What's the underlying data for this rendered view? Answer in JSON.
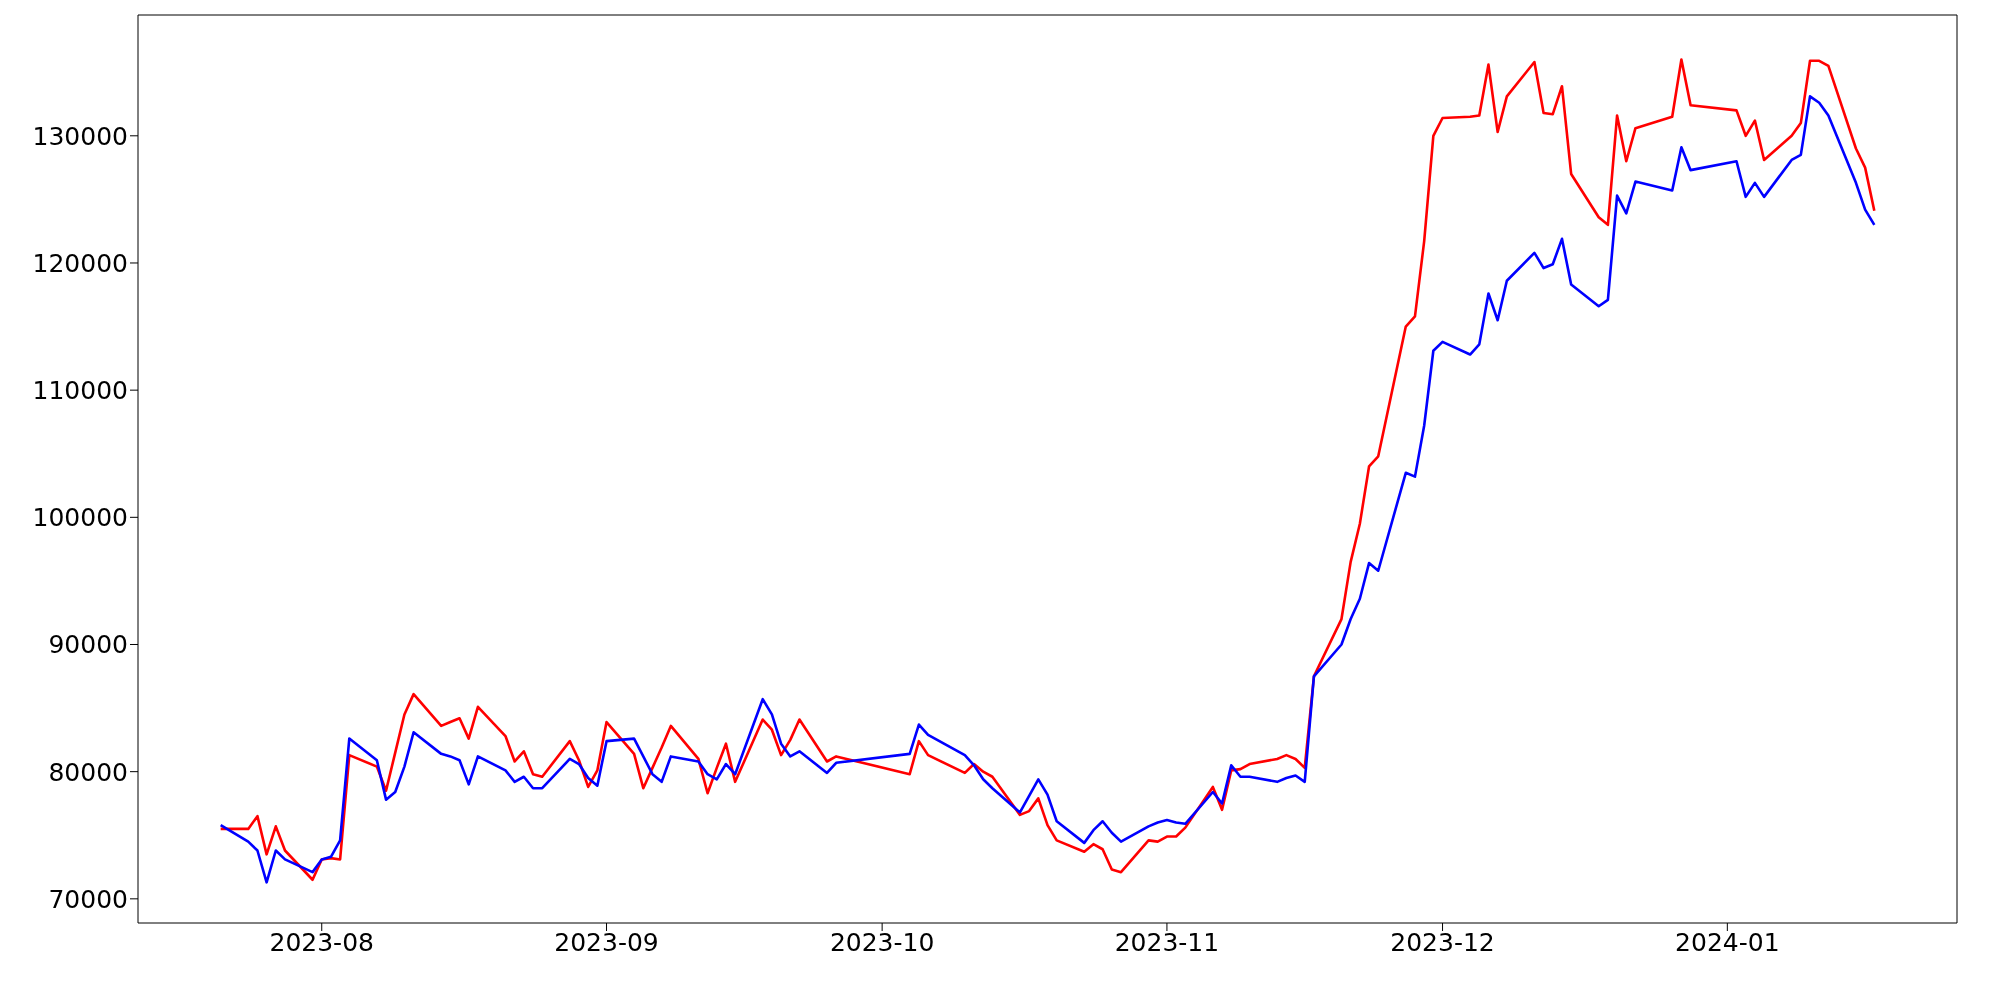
{
  "chart_data": {
    "type": "line",
    "x": [
      "2023-07-21",
      "2023-07-24",
      "2023-07-25",
      "2023-07-26",
      "2023-07-27",
      "2023-07-28",
      "2023-07-31",
      "2023-08-01",
      "2023-08-02",
      "2023-08-03",
      "2023-08-04",
      "2023-08-07",
      "2023-08-08",
      "2023-08-09",
      "2023-08-10",
      "2023-08-11",
      "2023-08-14",
      "2023-08-15",
      "2023-08-16",
      "2023-08-17",
      "2023-08-18",
      "2023-08-21",
      "2023-08-22",
      "2023-08-23",
      "2023-08-24",
      "2023-08-25",
      "2023-08-28",
      "2023-08-29",
      "2023-08-30",
      "2023-08-31",
      "2023-09-01",
      "2023-09-04",
      "2023-09-05",
      "2023-09-06",
      "2023-09-07",
      "2023-09-08",
      "2023-09-11",
      "2023-09-12",
      "2023-09-13",
      "2023-09-14",
      "2023-09-15",
      "2023-09-18",
      "2023-09-19",
      "2023-09-20",
      "2023-09-21",
      "2023-09-22",
      "2023-09-25",
      "2023-09-26",
      "2023-10-04",
      "2023-10-05",
      "2023-10-06",
      "2023-10-10",
      "2023-10-11",
      "2023-10-12",
      "2023-10-13",
      "2023-10-16",
      "2023-10-17",
      "2023-10-18",
      "2023-10-19",
      "2023-10-20",
      "2023-10-23",
      "2023-10-24",
      "2023-10-25",
      "2023-10-26",
      "2023-10-27",
      "2023-10-30",
      "2023-10-31",
      "2023-11-01",
      "2023-11-02",
      "2023-11-03",
      "2023-11-06",
      "2023-11-07",
      "2023-11-08",
      "2023-11-09",
      "2023-11-10",
      "2023-11-13",
      "2023-11-14",
      "2023-11-15",
      "2023-11-16",
      "2023-11-17",
      "2023-11-20",
      "2023-11-21",
      "2023-11-22",
      "2023-11-23",
      "2023-11-24",
      "2023-11-27",
      "2023-11-28",
      "2023-11-29",
      "2023-11-30",
      "2023-12-01",
      "2023-12-04",
      "2023-12-05",
      "2023-12-06",
      "2023-12-07",
      "2023-12-08",
      "2023-12-11",
      "2023-12-12",
      "2023-12-13",
      "2023-12-14",
      "2023-12-15",
      "2023-12-18",
      "2023-12-19",
      "2023-12-20",
      "2023-12-21",
      "2023-12-22",
      "2023-12-26",
      "2023-12-27",
      "2023-12-28",
      "2024-01-02",
      "2024-01-03",
      "2024-01-04",
      "2024-01-05",
      "2024-01-08",
      "2024-01-09",
      "2024-01-10",
      "2024-01-11",
      "2024-01-12",
      "2024-01-15",
      "2024-01-16",
      "2024-01-17"
    ],
    "series": [
      {
        "color": "#ff0000",
        "values": [
          75500,
          75500,
          76500,
          73500,
          75700,
          73800,
          71500,
          73100,
          73200,
          73100,
          81300,
          80400,
          78500,
          81500,
          84500,
          86100,
          83600,
          83900,
          84200,
          82600,
          85100,
          82800,
          80800,
          81600,
          79800,
          79600,
          82400,
          80900,
          78800,
          80100,
          83900,
          81400,
          78700,
          80300,
          81900,
          83600,
          81000,
          78300,
          80300,
          82200,
          79200,
          84100,
          83300,
          81300,
          82500,
          84100,
          80800,
          81200,
          79800,
          82400,
          81300,
          79900,
          80600,
          80000,
          79600,
          76600,
          76900,
          77900,
          75800,
          74600,
          73700,
          74300,
          73900,
          72300,
          72100,
          74600,
          74500,
          74900,
          74900,
          75600,
          78800,
          77000,
          80100,
          80200,
          80600,
          81000,
          81300,
          81000,
          80300,
          87500,
          92000,
          96500,
          99500,
          104000,
          104800,
          115000,
          115800,
          121700,
          130000,
          131400,
          131500,
          131600,
          135600,
          130300,
          133100,
          135800,
          131800,
          131700,
          133900,
          127000,
          123600,
          123000,
          131600,
          128000,
          130600,
          131500,
          136000,
          132400,
          132000,
          130000,
          131200,
          128100,
          130000,
          131000,
          135900,
          135900,
          135500,
          129000,
          127500,
          124100
        ]
      },
      {
        "color": "#0000ff",
        "values": [
          75800,
          74500,
          73800,
          71300,
          73800,
          73100,
          72100,
          73100,
          73300,
          74600,
          82600,
          80900,
          77800,
          78400,
          80400,
          83100,
          81400,
          81200,
          80900,
          79000,
          81200,
          80100,
          79200,
          79600,
          78700,
          78700,
          81000,
          80600,
          79500,
          78900,
          82400,
          82600,
          81200,
          79800,
          79200,
          81200,
          80800,
          79800,
          79400,
          80600,
          79800,
          85700,
          84500,
          82200,
          81200,
          81600,
          79900,
          80700,
          81400,
          83700,
          82900,
          81300,
          80500,
          79400,
          78700,
          76800,
          78100,
          79400,
          78200,
          76100,
          74400,
          75400,
          76100,
          75200,
          74500,
          75700,
          76000,
          76200,
          76000,
          75900,
          78400,
          77500,
          80500,
          79600,
          79600,
          79200,
          79500,
          79700,
          79200,
          87500,
          90000,
          92000,
          93600,
          96400,
          95800,
          103500,
          103200,
          107200,
          113100,
          113800,
          112800,
          113600,
          117600,
          115500,
          118600,
          120800,
          119600,
          119900,
          121900,
          118300,
          116600,
          117100,
          125300,
          123900,
          126400,
          125700,
          129100,
          127300,
          128000,
          125200,
          126300,
          125200,
          128100,
          128500,
          133100,
          132600,
          131600,
          126300,
          124200,
          123000
        ]
      }
    ],
    "xlim": [
      "2023-07-12",
      "2024-01-26"
    ],
    "xticks": [
      {
        "value": "2023-08-01",
        "label": "2023-08"
      },
      {
        "value": "2023-09-01",
        "label": "2023-09"
      },
      {
        "value": "2023-10-01",
        "label": "2023-10"
      },
      {
        "value": "2023-11-01",
        "label": "2023-11"
      },
      {
        "value": "2023-12-01",
        "label": "2023-12"
      },
      {
        "value": "2024-01-01",
        "label": "2024-01"
      }
    ],
    "ylim": [
      68100,
      139500
    ],
    "yticks": [
      70000,
      80000,
      90000,
      100000,
      110000,
      120000,
      130000
    ],
    "grid": false,
    "legend": false
  }
}
